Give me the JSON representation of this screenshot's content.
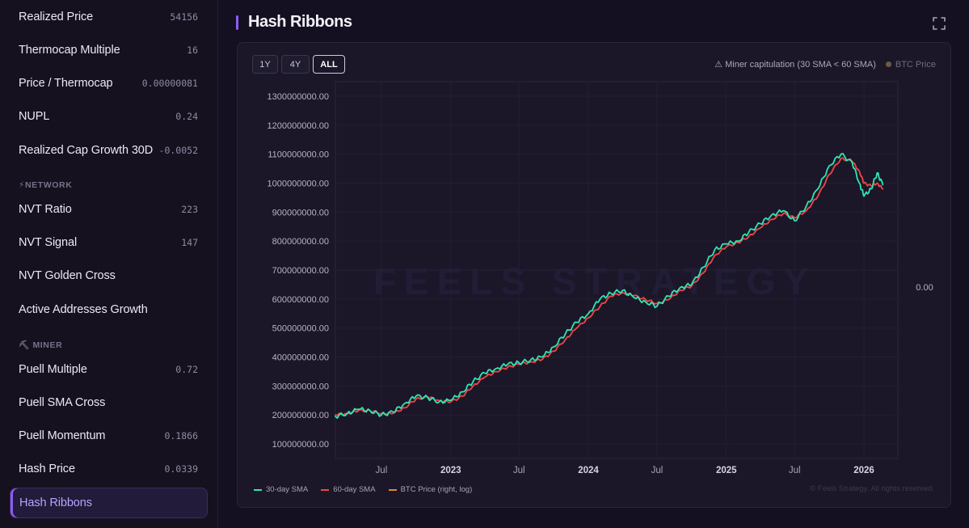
{
  "sidebar": {
    "items": [
      {
        "label": "Realized Price",
        "value": "54156"
      },
      {
        "label": "Thermocap Multiple",
        "value": "16"
      },
      {
        "label": "Price / Thermocap",
        "value": "0.00000081"
      },
      {
        "label": "NUPL",
        "value": "0.24"
      },
      {
        "label": "Realized Cap Growth 30D",
        "value": "-0.0052"
      },
      {
        "label": "NVT Ratio",
        "value": "223"
      },
      {
        "label": "NVT Signal",
        "value": "147"
      },
      {
        "label": "NVT Golden Cross",
        "value": ""
      },
      {
        "label": "Active Addresses Growth",
        "value": ""
      },
      {
        "label": "Puell Multiple",
        "value": "0.72"
      },
      {
        "label": "Puell SMA Cross",
        "value": ""
      },
      {
        "label": "Puell Momentum",
        "value": "0.1866"
      },
      {
        "label": "Hash Price",
        "value": "0.0339"
      },
      {
        "label": "Hash Ribbons",
        "value": ""
      }
    ],
    "sections": {
      "network": "⚡NETWORK",
      "miner": "⛏ MINER"
    },
    "active_item": "Hash Ribbons"
  },
  "main": {
    "title": "Hash Ribbons",
    "fullscreen_icon": "expand-icon"
  },
  "controls": {
    "ranges": [
      "1Y",
      "4Y",
      "ALL"
    ],
    "active_range": "ALL"
  },
  "legend_top": {
    "capitulation": "⚠ Miner capitulation (30 SMA < 60 SMA)",
    "btc_price": "BTC Price"
  },
  "legend_bottom": {
    "sma30": "30-day SMA",
    "sma60": "60-day SMA",
    "btc": "BTC Price (right, log)"
  },
  "watermark": "FEELS STRATEGY",
  "copyright": "© Feels Strategy. All rights reserved.",
  "colors": {
    "accent": "#8b5cf6",
    "sma30": "#2ee6b4",
    "sma60": "#f04646",
    "btc": "#e8833a",
    "btc_dot": "#6b5a45"
  },
  "chart_data": {
    "type": "line",
    "title": "Hash Ribbons",
    "ylim": [
      50000000,
      1350000000
    ],
    "y_ticks": [
      100000000,
      200000000,
      300000000,
      400000000,
      500000000,
      600000000,
      700000000,
      800000000,
      900000000,
      1000000000,
      1100000000,
      1200000000,
      1300000000
    ],
    "y_tick_labels": [
      "100000000.00",
      "200000000.00",
      "300000000.00",
      "400000000.00",
      "500000000.00",
      "600000000.00",
      "700000000.00",
      "800000000.00",
      "900000000.00",
      "1000000000.00",
      "1100000000.00",
      "1200000000.00",
      "1300000000.00"
    ],
    "right_axis_label": "0.00",
    "xlim": [
      "2022-03-01",
      "2026-04-01"
    ],
    "x_ticks": [
      {
        "date": "2022-07-01",
        "label": "Jul",
        "bold": false
      },
      {
        "date": "2023-01-01",
        "label": "2023",
        "bold": true
      },
      {
        "date": "2023-07-01",
        "label": "Jul",
        "bold": false
      },
      {
        "date": "2024-01-01",
        "label": "2024",
        "bold": true
      },
      {
        "date": "2024-07-01",
        "label": "Jul",
        "bold": false
      },
      {
        "date": "2025-01-01",
        "label": "2025",
        "bold": true
      },
      {
        "date": "2025-07-01",
        "label": "Jul",
        "bold": false
      },
      {
        "date": "2026-01-01",
        "label": "2026",
        "bold": true
      }
    ],
    "grid": true,
    "legend": "bottom-left",
    "series": [
      {
        "name": "30-day SMA",
        "color": "#2ee6b4",
        "points": [
          [
            "2022-03-01",
            195000000
          ],
          [
            "2022-04-01",
            205000000
          ],
          [
            "2022-05-01",
            220000000
          ],
          [
            "2022-06-01",
            215000000
          ],
          [
            "2022-07-01",
            200000000
          ],
          [
            "2022-08-01",
            210000000
          ],
          [
            "2022-09-01",
            240000000
          ],
          [
            "2022-10-01",
            265000000
          ],
          [
            "2022-11-01",
            260000000
          ],
          [
            "2022-12-01",
            245000000
          ],
          [
            "2023-01-01",
            250000000
          ],
          [
            "2023-02-01",
            280000000
          ],
          [
            "2023-03-01",
            315000000
          ],
          [
            "2023-04-01",
            345000000
          ],
          [
            "2023-05-01",
            360000000
          ],
          [
            "2023-06-01",
            375000000
          ],
          [
            "2023-07-01",
            380000000
          ],
          [
            "2023-08-01",
            390000000
          ],
          [
            "2023-09-01",
            400000000
          ],
          [
            "2023-10-01",
            435000000
          ],
          [
            "2023-11-01",
            480000000
          ],
          [
            "2023-12-01",
            520000000
          ],
          [
            "2024-01-01",
            550000000
          ],
          [
            "2024-02-01",
            600000000
          ],
          [
            "2024-03-01",
            620000000
          ],
          [
            "2024-04-01",
            630000000
          ],
          [
            "2024-05-01",
            605000000
          ],
          [
            "2024-06-01",
            590000000
          ],
          [
            "2024-07-01",
            575000000
          ],
          [
            "2024-08-01",
            610000000
          ],
          [
            "2024-09-01",
            640000000
          ],
          [
            "2024-10-01",
            650000000
          ],
          [
            "2024-11-01",
            710000000
          ],
          [
            "2024-12-01",
            770000000
          ],
          [
            "2025-01-01",
            790000000
          ],
          [
            "2025-02-01",
            800000000
          ],
          [
            "2025-03-01",
            830000000
          ],
          [
            "2025-04-01",
            860000000
          ],
          [
            "2025-05-01",
            890000000
          ],
          [
            "2025-06-01",
            905000000
          ],
          [
            "2025-07-01",
            870000000
          ],
          [
            "2025-08-01",
            920000000
          ],
          [
            "2025-09-01",
            980000000
          ],
          [
            "2025-10-01",
            1060000000
          ],
          [
            "2025-11-01",
            1100000000
          ],
          [
            "2025-12-01",
            1070000000
          ],
          [
            "2025-12-20",
            1000000000
          ],
          [
            "2026-01-01",
            955000000
          ],
          [
            "2026-01-20",
            980000000
          ],
          [
            "2026-02-05",
            1035000000
          ],
          [
            "2026-02-20",
            995000000
          ]
        ]
      },
      {
        "name": "60-day SMA",
        "color": "#f04646",
        "points": [
          [
            "2022-03-01",
            200000000
          ],
          [
            "2022-04-01",
            205000000
          ],
          [
            "2022-05-01",
            215000000
          ],
          [
            "2022-06-01",
            215000000
          ],
          [
            "2022-07-01",
            205000000
          ],
          [
            "2022-08-01",
            205000000
          ],
          [
            "2022-09-01",
            225000000
          ],
          [
            "2022-10-01",
            255000000
          ],
          [
            "2022-11-01",
            262000000
          ],
          [
            "2022-12-01",
            250000000
          ],
          [
            "2023-01-01",
            245000000
          ],
          [
            "2023-02-01",
            265000000
          ],
          [
            "2023-03-01",
            300000000
          ],
          [
            "2023-04-01",
            330000000
          ],
          [
            "2023-05-01",
            350000000
          ],
          [
            "2023-06-01",
            365000000
          ],
          [
            "2023-07-01",
            375000000
          ],
          [
            "2023-08-01",
            383000000
          ],
          [
            "2023-09-01",
            392000000
          ],
          [
            "2023-10-01",
            420000000
          ],
          [
            "2023-11-01",
            460000000
          ],
          [
            "2023-12-01",
            500000000
          ],
          [
            "2024-01-01",
            535000000
          ],
          [
            "2024-02-01",
            575000000
          ],
          [
            "2024-03-01",
            610000000
          ],
          [
            "2024-04-01",
            622000000
          ],
          [
            "2024-05-01",
            612000000
          ],
          [
            "2024-06-01",
            598000000
          ],
          [
            "2024-07-01",
            585000000
          ],
          [
            "2024-08-01",
            598000000
          ],
          [
            "2024-09-01",
            630000000
          ],
          [
            "2024-10-01",
            645000000
          ],
          [
            "2024-11-01",
            690000000
          ],
          [
            "2024-12-01",
            750000000
          ],
          [
            "2025-01-01",
            780000000
          ],
          [
            "2025-02-01",
            795000000
          ],
          [
            "2025-03-01",
            815000000
          ],
          [
            "2025-04-01",
            845000000
          ],
          [
            "2025-05-01",
            875000000
          ],
          [
            "2025-06-01",
            895000000
          ],
          [
            "2025-07-01",
            880000000
          ],
          [
            "2025-08-01",
            905000000
          ],
          [
            "2025-09-01",
            955000000
          ],
          [
            "2025-10-01",
            1030000000
          ],
          [
            "2025-11-01",
            1085000000
          ],
          [
            "2025-12-01",
            1075000000
          ],
          [
            "2025-12-20",
            1040000000
          ],
          [
            "2026-01-01",
            1000000000
          ],
          [
            "2026-01-20",
            990000000
          ],
          [
            "2026-02-05",
            1000000000
          ],
          [
            "2026-02-20",
            980000000
          ]
        ]
      }
    ]
  }
}
